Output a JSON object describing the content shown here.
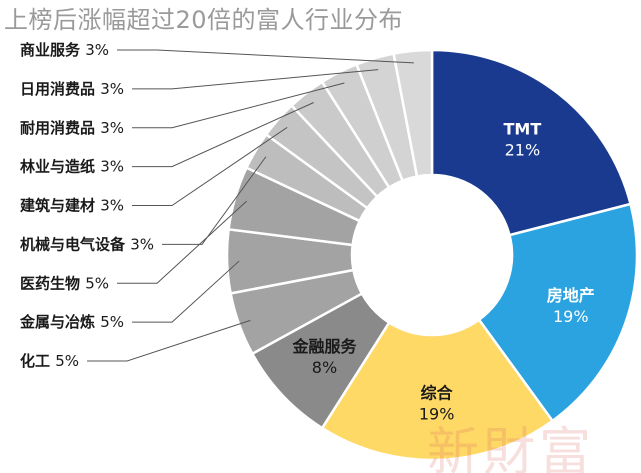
{
  "chart_data": {
    "type": "pie",
    "title": "上榜后涨幅超过20倍的富人行业分布",
    "donut": true,
    "legend": "none",
    "slices": [
      {
        "label": "TMT",
        "value": 21,
        "color": "#1a3a8f",
        "label_color": "#ffffff"
      },
      {
        "label": "房地产",
        "value": 19,
        "color": "#2aa3e0",
        "label_color": "#ffffff"
      },
      {
        "label": "综合",
        "value": 19,
        "color": "#ffd966",
        "label_color": "#1a1a1a"
      },
      {
        "label": "金融服务",
        "value": 8,
        "color": "#8a8a8a",
        "label_color": "#1a1a1a"
      },
      {
        "label": "化工",
        "value": 5,
        "color": "#a3a3a3",
        "label_color": "#1a1a1a"
      },
      {
        "label": "金属与冶炼",
        "value": 5,
        "color": "#a3a3a3",
        "label_color": "#1a1a1a"
      },
      {
        "label": "医药生物",
        "value": 5,
        "color": "#a3a3a3",
        "label_color": "#1a1a1a"
      },
      {
        "label": "机械与电气设备",
        "value": 3,
        "color": "#bdbdbd",
        "label_color": "#1a1a1a"
      },
      {
        "label": "建筑与建材",
        "value": 3,
        "color": "#c4c4c4",
        "label_color": "#1a1a1a"
      },
      {
        "label": "林业与造纸",
        "value": 3,
        "color": "#cacaca",
        "label_color": "#1a1a1a"
      },
      {
        "label": "耐用消费品",
        "value": 3,
        "color": "#cfcfcf",
        "label_color": "#1a1a1a"
      },
      {
        "label": "日用消费品",
        "value": 3,
        "color": "#d4d4d4",
        "label_color": "#1a1a1a"
      },
      {
        "label": "商业服务",
        "value": 3,
        "color": "#d9d9d9",
        "label_color": "#1a1a1a"
      }
    ],
    "percent_suffix": "%"
  },
  "watermark": "新財富"
}
